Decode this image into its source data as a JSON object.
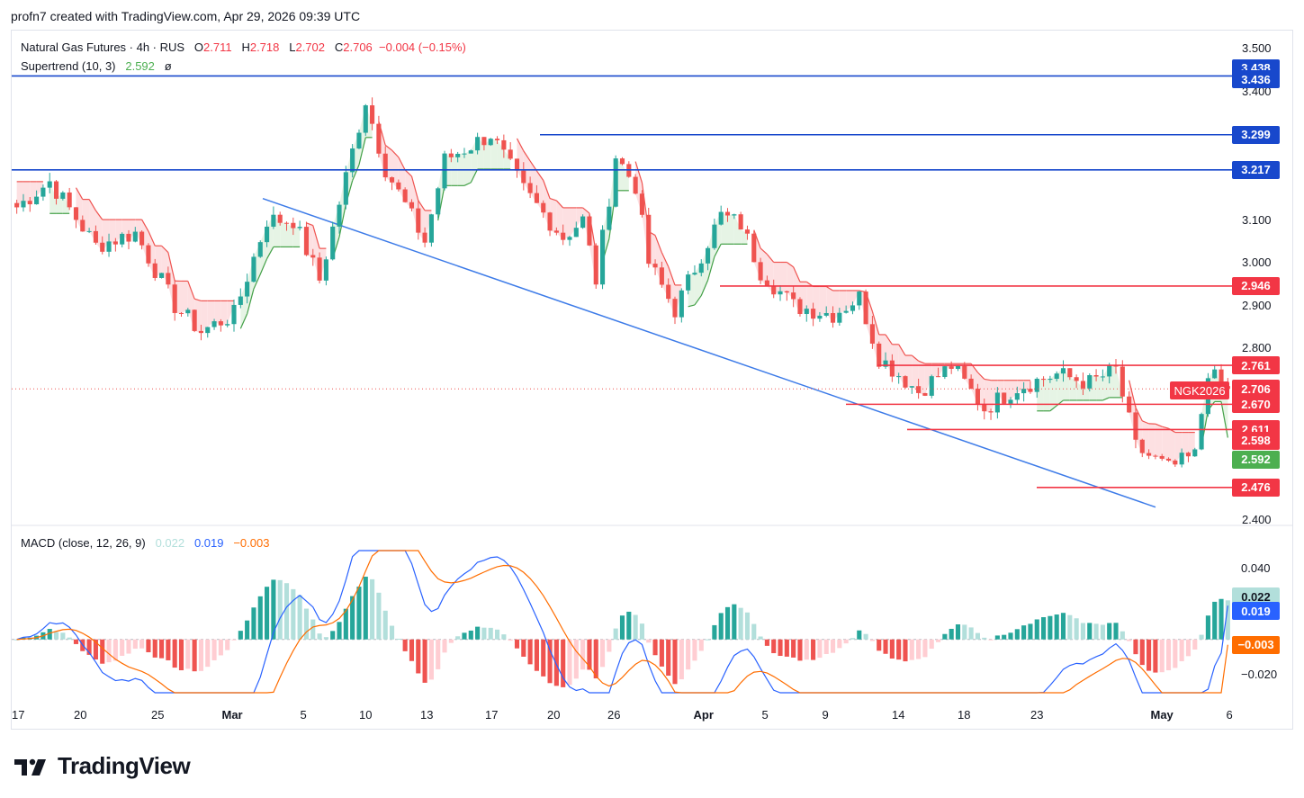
{
  "caption": "profn7 created with TradingView.com, Apr 29, 2026 09:39 UTC",
  "legend": {
    "symbol_line": "Natural Gas Futures · 4h · RUS",
    "o_label": "O",
    "o_value": "2.711",
    "h_label": "H",
    "h_value": "2.718",
    "l_label": "L",
    "l_value": "2.702",
    "c_label": "C",
    "c_value": "2.706",
    "change": "−0.004 (−0.15%)",
    "supertrend_label": "Supertrend (10, 3)",
    "supertrend_value": "2.592",
    "supertrend_symbol": "ø",
    "macd_label": "MACD (close, 12, 26, 9)",
    "macd_hist": "0.022",
    "macd_line": "0.019",
    "macd_signal": "−0.003"
  },
  "symbol_tag": "NGK2026",
  "brand": "TradingView",
  "colors": {
    "up": "#26a69a",
    "down": "#ef5350",
    "level_blue": "#1848cc",
    "level_red": "#f23645",
    "trendline": "#3d7be8",
    "st_down_fill": "#fde0e2",
    "st_up_fill": "#e6f4e5",
    "macd_line": "#2962ff",
    "signal_line": "#ff6d00"
  },
  "chart_data": [
    {
      "type": "candlestick",
      "title": "Natural Gas Futures · 4h · RUS",
      "ylim": [
        2.4,
        3.5
      ],
      "yticks": [
        "2.400",
        "2.500",
        "2.600",
        "2.700",
        "2.800",
        "2.900",
        "3.000",
        "3.100",
        "3.200",
        "3.300",
        "3.400",
        "3.500"
      ],
      "xticks": [
        "17",
        "20",
        "25",
        "Mar",
        "5",
        "10",
        "13",
        "17",
        "20",
        "26",
        "Apr",
        "5",
        "9",
        "14",
        "18",
        "23",
        "May",
        "6"
      ],
      "last_close": 2.706,
      "supertrend_last": 2.592,
      "anchor_path": [
        [
          0,
          3.13
        ],
        [
          5,
          3.19
        ],
        [
          12,
          3.04
        ],
        [
          18,
          3.07
        ],
        [
          24,
          2.9
        ],
        [
          28,
          2.84
        ],
        [
          33,
          2.88
        ],
        [
          38,
          3.1
        ],
        [
          42,
          3.1
        ],
        [
          46,
          2.96
        ],
        [
          53,
          3.38
        ],
        [
          56,
          3.22
        ],
        [
          62,
          3.05
        ],
        [
          65,
          3.24
        ],
        [
          72,
          3.3
        ],
        [
          77,
          3.17
        ],
        [
          83,
          3.06
        ],
        [
          86,
          3.1
        ],
        [
          88,
          2.96
        ],
        [
          91,
          3.25
        ],
        [
          94,
          3.18
        ],
        [
          96,
          3.0
        ],
        [
          100,
          2.89
        ],
        [
          104,
          3.02
        ],
        [
          107,
          3.11
        ],
        [
          110,
          3.09
        ],
        [
          113,
          2.98
        ],
        [
          118,
          2.9
        ],
        [
          124,
          2.88
        ],
        [
          128,
          2.92
        ],
        [
          131,
          2.78
        ],
        [
          137,
          2.7
        ],
        [
          142,
          2.76
        ],
        [
          147,
          2.66
        ],
        [
          152,
          2.71
        ],
        [
          158,
          2.74
        ],
        [
          163,
          2.72
        ],
        [
          167,
          2.75
        ],
        [
          170,
          2.57
        ],
        [
          175,
          2.52
        ],
        [
          179,
          2.55
        ],
        [
          181,
          2.75
        ],
        [
          183,
          2.71
        ]
      ],
      "levels": [
        {
          "price": 3.438,
          "label": "3.438",
          "style": "tag"
        },
        {
          "price": 3.436,
          "label": "3.436",
          "style": "line-blue"
        },
        {
          "price": 3.299,
          "label": "3.299",
          "style": "line-blue"
        },
        {
          "price": 3.217,
          "label": "3.217",
          "style": "line-blue"
        },
        {
          "price": 2.946,
          "label": "2.946",
          "style": "line-red"
        },
        {
          "price": 2.761,
          "label": "2.761",
          "style": "line-red"
        },
        {
          "price": 2.67,
          "label": "2.670",
          "style": "line-red"
        },
        {
          "price": 2.611,
          "label": "2.611",
          "style": "line-red"
        },
        {
          "price": 2.598,
          "label": "2.598",
          "style": "tag"
        },
        {
          "price": 2.592,
          "label": "2.592",
          "style": "tag-green"
        },
        {
          "price": 2.476,
          "label": "2.476",
          "style": "line-red"
        }
      ],
      "trendline": {
        "from_price": 3.15,
        "to_price": 2.43
      }
    },
    {
      "type": "bar",
      "title": "MACD (close, 12, 26, 9)",
      "ylim": [
        -0.03,
        0.05
      ],
      "yticks": [
        "0.040",
        "0.000",
        "−0.020"
      ],
      "histogram_last": 0.022,
      "macd_last": 0.019,
      "signal_last": -0.003
    }
  ]
}
